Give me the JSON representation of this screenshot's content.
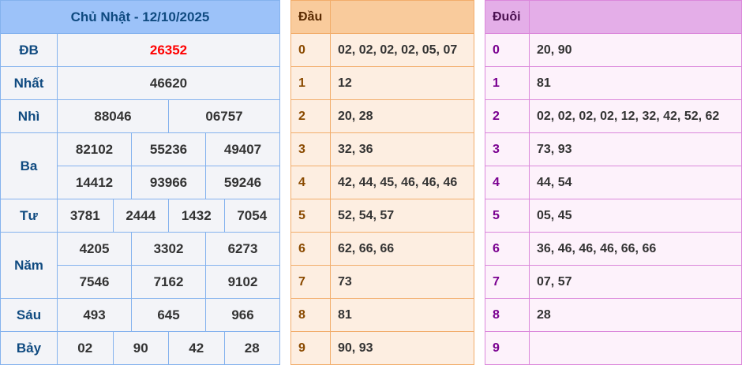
{
  "results": {
    "title": "Chủ Nhật - 12/10/2025",
    "prizes": [
      {
        "label": "ĐB",
        "rows": [
          [
            "26352"
          ]
        ],
        "highlight": true
      },
      {
        "label": "Nhất",
        "rows": [
          [
            "46620"
          ]
        ]
      },
      {
        "label": "Nhì",
        "rows": [
          [
            "88046",
            "06757"
          ]
        ]
      },
      {
        "label": "Ba",
        "rows": [
          [
            "82102",
            "55236",
            "49407"
          ],
          [
            "14412",
            "93966",
            "59246"
          ]
        ]
      },
      {
        "label": "Tư",
        "rows": [
          [
            "3781",
            "2444",
            "1432",
            "7054"
          ]
        ]
      },
      {
        "label": "Năm",
        "rows": [
          [
            "4205",
            "3302",
            "6273"
          ],
          [
            "7546",
            "7162",
            "9102"
          ]
        ]
      },
      {
        "label": "Sáu",
        "rows": [
          [
            "493",
            "645",
            "966"
          ]
        ]
      },
      {
        "label": "Bảy",
        "rows": [
          [
            "02",
            "90",
            "42",
            "28"
          ]
        ]
      }
    ]
  },
  "dau": {
    "header": "Đầu",
    "rows": [
      {
        "key": "0",
        "values": "02, 02, 02, 02, 05, 07"
      },
      {
        "key": "1",
        "values": "12"
      },
      {
        "key": "2",
        "values": "20, 28"
      },
      {
        "key": "3",
        "values": "32, 36"
      },
      {
        "key": "4",
        "values": "42, 44, 45, 46, 46, 46"
      },
      {
        "key": "5",
        "values": "52, 54, 57"
      },
      {
        "key": "6",
        "values": "62, 66, 66"
      },
      {
        "key": "7",
        "values": "73"
      },
      {
        "key": "8",
        "values": "81"
      },
      {
        "key": "9",
        "values": "90, 93"
      }
    ]
  },
  "duoi": {
    "header": "Đuôi",
    "rows": [
      {
        "key": "0",
        "values": "20, 90"
      },
      {
        "key": "1",
        "values": "81"
      },
      {
        "key": "2",
        "values": "02, 02, 02, 02, 12, 32, 42, 52, 62"
      },
      {
        "key": "3",
        "values": "73, 93"
      },
      {
        "key": "4",
        "values": "44, 54"
      },
      {
        "key": "5",
        "values": "05, 45"
      },
      {
        "key": "6",
        "values": "36, 46, 46, 46, 66, 66"
      },
      {
        "key": "7",
        "values": "07, 57"
      },
      {
        "key": "8",
        "values": "28"
      },
      {
        "key": "9",
        "values": ""
      }
    ]
  },
  "colors": {
    "results_header": "#9cc2f9",
    "dau_header": "#f9cb9c",
    "duoi_header": "#e4aee8",
    "special_prize": "#ff0000"
  }
}
